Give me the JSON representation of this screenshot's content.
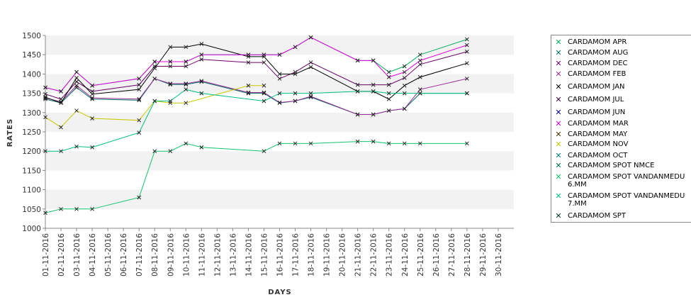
{
  "chart_data": {
    "type": "line",
    "title": "",
    "xlabel": "DAYS",
    "ylabel": "RATES",
    "ylim": [
      1000,
      1500
    ],
    "yticks": [
      1000,
      1050,
      1100,
      1150,
      1200,
      1250,
      1300,
      1350,
      1400,
      1450,
      1500
    ],
    "x_ticks": [
      "01-11-2016",
      "02-11-2016",
      "03-11-2016",
      "04-11-2016",
      "05-11-2016",
      "06-11-2016",
      "07-11-2016",
      "08-11-2016",
      "09-11-2016",
      "10-11-2016",
      "11-11-2016",
      "12-11-2016",
      "13-11-2016",
      "14-11-2016",
      "15-11-2016",
      "16-11-2016",
      "17-11-2016",
      "18-11-2016",
      "19-11-2016",
      "20-11-2016",
      "21-11-2016",
      "22-11-2016",
      "23-11-2016",
      "24-11-2016",
      "25-11-2016",
      "26-11-2016",
      "27-11-2016",
      "28-11-2016",
      "29-11-2016",
      "30-11-2016"
    ],
    "legend_position": "right",
    "grid": "alternating horizontal bands",
    "series": [
      {
        "name": "CARDAMOM APR",
        "color": "#00b15a",
        "points": [
          [
            "01-11-2016",
            1365
          ],
          [
            "02-11-2016",
            1355
          ],
          [
            "03-11-2016",
            1405
          ],
          [
            "04-11-2016",
            1370
          ],
          [
            "07-11-2016",
            1388
          ],
          [
            "08-11-2016",
            1432
          ],
          [
            "09-11-2016",
            1432
          ],
          [
            "10-11-2016",
            1432
          ],
          [
            "11-11-2016",
            1450
          ],
          [
            "14-11-2016",
            1450
          ],
          [
            "15-11-2016",
            1450
          ],
          [
            "16-11-2016",
            1450
          ],
          [
            "17-11-2016",
            1470
          ],
          [
            "18-11-2016",
            1495
          ],
          [
            "21-11-2016",
            1435
          ],
          [
            "22-11-2016",
            1435
          ],
          [
            "23-11-2016",
            1405
          ],
          [
            "24-11-2016",
            1420
          ],
          [
            "25-11-2016",
            1450
          ],
          [
            "28-11-2016",
            1490
          ]
        ]
      },
      {
        "name": "CARDAMOM AUG",
        "color": "#007060",
        "points": [
          [
            "01-11-2016",
            1335
          ],
          [
            "02-11-2016",
            1325
          ],
          [
            "03-11-2016",
            1365
          ],
          [
            "04-11-2016",
            1335
          ],
          [
            "07-11-2016",
            1332
          ],
          [
            "08-11-2016",
            1388
          ],
          [
            "09-11-2016",
            1373
          ],
          [
            "10-11-2016",
            1373
          ],
          [
            "11-11-2016",
            1380
          ],
          [
            "14-11-2016",
            1350
          ],
          [
            "15-11-2016",
            1350
          ],
          [
            "16-11-2016",
            1325
          ],
          [
            "17-11-2016",
            1330
          ],
          [
            "18-11-2016",
            1340
          ],
          [
            "21-11-2016",
            1295
          ],
          [
            "22-11-2016",
            1295
          ],
          [
            "23-11-2016",
            1305
          ],
          [
            "24-11-2016",
            1310
          ],
          [
            "25-11-2016",
            1350
          ],
          [
            "28-11-2016",
            1350
          ]
        ]
      },
      {
        "name": "CARDAMOM DEC",
        "color": "#6b006b",
        "points": [
          [
            "01-11-2016",
            1348
          ],
          [
            "02-11-2016",
            1335
          ],
          [
            "03-11-2016",
            1380
          ],
          [
            "04-11-2016",
            1355
          ],
          [
            "07-11-2016",
            1372
          ],
          [
            "08-11-2016",
            1420
          ],
          [
            "09-11-2016",
            1420
          ],
          [
            "10-11-2016",
            1420
          ],
          [
            "11-11-2016",
            1438
          ],
          [
            "14-11-2016",
            1430
          ],
          [
            "15-11-2016",
            1430
          ],
          [
            "16-11-2016",
            1388
          ],
          [
            "17-11-2016",
            1405
          ],
          [
            "18-11-2016",
            1430
          ],
          [
            "21-11-2016",
            1372
          ],
          [
            "22-11-2016",
            1372
          ],
          [
            "23-11-2016",
            1372
          ],
          [
            "24-11-2016",
            1390
          ],
          [
            "25-11-2016",
            1425
          ],
          [
            "28-11-2016",
            1458
          ]
        ]
      },
      {
        "name": "CARDAMOM FEB",
        "color": "#9a2d9a",
        "points": [
          [
            "01-11-2016",
            1338
          ],
          [
            "02-11-2016",
            1328
          ],
          [
            "03-11-2016",
            1370
          ],
          [
            "04-11-2016",
            1338
          ],
          [
            "07-11-2016",
            1335
          ],
          [
            "08-11-2016",
            1388
          ],
          [
            "09-11-2016",
            1375
          ],
          [
            "10-11-2016",
            1375
          ],
          [
            "11-11-2016",
            1382
          ],
          [
            "14-11-2016",
            1352
          ],
          [
            "15-11-2016",
            1352
          ],
          [
            "16-11-2016",
            1326
          ],
          [
            "17-11-2016",
            1330
          ],
          [
            "18-11-2016",
            1342
          ],
          [
            "21-11-2016",
            1295
          ],
          [
            "22-11-2016",
            1295
          ],
          [
            "23-11-2016",
            1305
          ],
          [
            "24-11-2016",
            1310
          ],
          [
            "25-11-2016",
            1360
          ],
          [
            "28-11-2016",
            1388
          ]
        ]
      },
      {
        "name": "CARDAMOM JAN",
        "color": "#000000",
        "points": [
          [
            "01-11-2016",
            1340
          ],
          [
            "02-11-2016",
            1325
          ],
          [
            "03-11-2016",
            1390
          ],
          [
            "04-11-2016",
            1348
          ],
          [
            "07-11-2016",
            1360
          ],
          [
            "08-11-2016",
            1415
          ],
          [
            "09-11-2016",
            1470
          ],
          [
            "10-11-2016",
            1470
          ],
          [
            "11-11-2016",
            1478
          ],
          [
            "14-11-2016",
            1445
          ],
          [
            "15-11-2016",
            1445
          ],
          [
            "16-11-2016",
            1400
          ],
          [
            "17-11-2016",
            1400
          ],
          [
            "18-11-2016",
            1418
          ],
          [
            "21-11-2016",
            1355
          ],
          [
            "22-11-2016",
            1355
          ],
          [
            "23-11-2016",
            1335
          ],
          [
            "24-11-2016",
            1370
          ],
          [
            "25-11-2016",
            1392
          ],
          [
            "28-11-2016",
            1428
          ]
        ]
      },
      {
        "name": "CARDAMOM JUL",
        "color": "#3a003a",
        "points": []
      },
      {
        "name": "CARDAMOM JUN",
        "color": "#000080",
        "points": []
      },
      {
        "name": "CARDAMOM MAR",
        "color": "#e000e0",
        "points": [
          [
            "01-11-2016",
            1365
          ],
          [
            "02-11-2016",
            1355
          ],
          [
            "03-11-2016",
            1405
          ],
          [
            "04-11-2016",
            1370
          ],
          [
            "07-11-2016",
            1388
          ],
          [
            "08-11-2016",
            1432
          ],
          [
            "09-11-2016",
            1432
          ],
          [
            "10-11-2016",
            1432
          ],
          [
            "11-11-2016",
            1450
          ],
          [
            "14-11-2016",
            1450
          ],
          [
            "15-11-2016",
            1450
          ],
          [
            "16-11-2016",
            1450
          ],
          [
            "17-11-2016",
            1470
          ],
          [
            "18-11-2016",
            1495
          ],
          [
            "21-11-2016",
            1435
          ],
          [
            "22-11-2016",
            1435
          ],
          [
            "23-11-2016",
            1392
          ],
          [
            "24-11-2016",
            1405
          ],
          [
            "25-11-2016",
            1435
          ],
          [
            "28-11-2016",
            1475
          ]
        ]
      },
      {
        "name": "CARDAMOM MAY",
        "color": "#4a2f00",
        "points": []
      },
      {
        "name": "CARDAMOM NOV",
        "color": "#c8c800",
        "points": [
          [
            "01-11-2016",
            1288
          ],
          [
            "02-11-2016",
            1262
          ],
          [
            "03-11-2016",
            1305
          ],
          [
            "04-11-2016",
            1285
          ],
          [
            "07-11-2016",
            1280
          ],
          [
            "08-11-2016",
            1330
          ],
          [
            "09-11-2016",
            1325
          ],
          [
            "10-11-2016",
            1325
          ],
          [
            "14-11-2016",
            1370
          ],
          [
            "15-11-2016",
            1370
          ]
        ]
      },
      {
        "name": "CARDAMOM OCT",
        "color": "#008080",
        "points": []
      },
      {
        "name": "CARDAMOM SPOT NMCE",
        "color": "#006d4b",
        "points": []
      },
      {
        "name": "CARDAMOM SPOT VANDANMEDU 6.MM",
        "color": "#14c46e",
        "points": [
          [
            "01-11-2016",
            1040
          ],
          [
            "02-11-2016",
            1050
          ],
          [
            "03-11-2016",
            1050
          ],
          [
            "04-11-2016",
            1050
          ],
          [
            "07-11-2016",
            1080
          ],
          [
            "08-11-2016",
            1200
          ],
          [
            "09-11-2016",
            1200
          ],
          [
            "10-11-2016",
            1220
          ],
          [
            "11-11-2016",
            1210
          ],
          [
            "15-11-2016",
            1200
          ],
          [
            "16-11-2016",
            1220
          ],
          [
            "17-11-2016",
            1220
          ],
          [
            "18-11-2016",
            1220
          ],
          [
            "21-11-2016",
            1225
          ],
          [
            "22-11-2016",
            1225
          ],
          [
            "23-11-2016",
            1220
          ],
          [
            "24-11-2016",
            1220
          ],
          [
            "25-11-2016",
            1220
          ],
          [
            "28-11-2016",
            1220
          ]
        ]
      },
      {
        "name": "CARDAMOM SPOT VANDANMEDU 7.MM",
        "color": "#00c080",
        "points": [
          [
            "01-11-2016",
            1200
          ],
          [
            "02-11-2016",
            1200
          ],
          [
            "03-11-2016",
            1212
          ],
          [
            "04-11-2016",
            1210
          ],
          [
            "07-11-2016",
            1248
          ],
          [
            "08-11-2016",
            1330
          ],
          [
            "09-11-2016",
            1330
          ],
          [
            "10-11-2016",
            1360
          ],
          [
            "11-11-2016",
            1350
          ],
          [
            "15-11-2016",
            1330
          ],
          [
            "16-11-2016",
            1350
          ],
          [
            "17-11-2016",
            1350
          ],
          [
            "18-11-2016",
            1350
          ],
          [
            "21-11-2016",
            1355
          ],
          [
            "22-11-2016",
            1355
          ],
          [
            "23-11-2016",
            1350
          ],
          [
            "24-11-2016",
            1350
          ],
          [
            "25-11-2016",
            1350
          ],
          [
            "28-11-2016",
            1350
          ]
        ]
      },
      {
        "name": "CARDAMOM SPT",
        "color": "#004020",
        "points": []
      }
    ]
  }
}
